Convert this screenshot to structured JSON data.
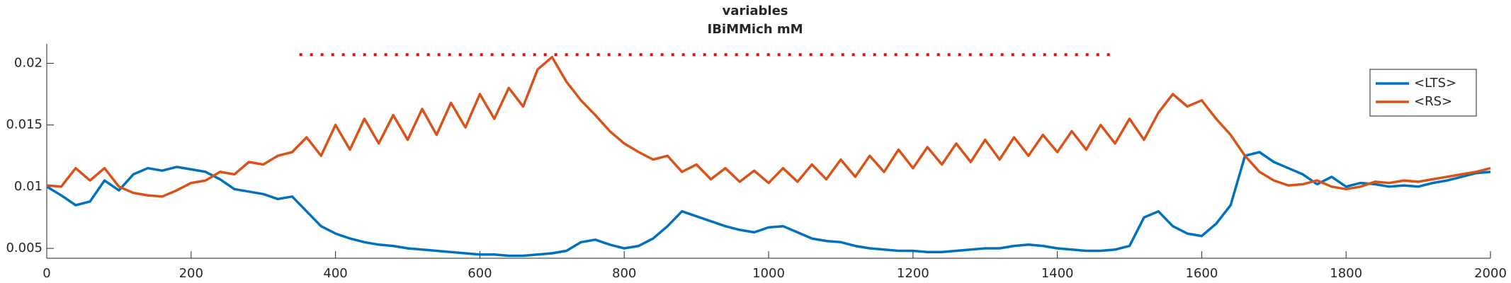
{
  "chart_data": {
    "type": "line",
    "title": "variables",
    "subtitle": "IBiMMich mM",
    "x": [
      0,
      20,
      40,
      60,
      80,
      100,
      120,
      140,
      160,
      180,
      200,
      220,
      240,
      260,
      280,
      300,
      320,
      340,
      360,
      380,
      400,
      420,
      440,
      460,
      480,
      500,
      520,
      540,
      560,
      580,
      600,
      620,
      640,
      660,
      680,
      700,
      720,
      740,
      760,
      780,
      800,
      820,
      840,
      860,
      880,
      900,
      920,
      940,
      960,
      980,
      1000,
      1020,
      1040,
      1060,
      1080,
      1100,
      1120,
      1140,
      1160,
      1180,
      1200,
      1220,
      1240,
      1260,
      1280,
      1300,
      1320,
      1340,
      1360,
      1380,
      1400,
      1420,
      1440,
      1460,
      1480,
      1500,
      1520,
      1540,
      1560,
      1580,
      1600,
      1620,
      1640,
      1660,
      1680,
      1700,
      1720,
      1740,
      1760,
      1780,
      1800,
      1820,
      1840,
      1860,
      1880,
      1900,
      1920,
      1940,
      1960,
      1980,
      2000
    ],
    "series": [
      {
        "name": "<LTS>",
        "color": "#0072bd",
        "values": [
          0.01,
          0.0093,
          0.0085,
          0.0088,
          0.0105,
          0.0097,
          0.011,
          0.0115,
          0.0113,
          0.0116,
          0.0114,
          0.0112,
          0.0106,
          0.0098,
          0.0096,
          0.0094,
          0.009,
          0.0092,
          0.008,
          0.0068,
          0.0062,
          0.0058,
          0.0055,
          0.0053,
          0.0052,
          0.005,
          0.0049,
          0.0048,
          0.0047,
          0.0046,
          0.0045,
          0.0045,
          0.0044,
          0.0044,
          0.0045,
          0.0046,
          0.0048,
          0.0055,
          0.0057,
          0.0053,
          0.005,
          0.0052,
          0.0058,
          0.0068,
          0.008,
          0.0076,
          0.0072,
          0.0068,
          0.0065,
          0.0063,
          0.0067,
          0.0068,
          0.0063,
          0.0058,
          0.0056,
          0.0055,
          0.0052,
          0.005,
          0.0049,
          0.0048,
          0.0048,
          0.0047,
          0.0047,
          0.0048,
          0.0049,
          0.005,
          0.005,
          0.0052,
          0.0053,
          0.0052,
          0.005,
          0.0049,
          0.0048,
          0.0048,
          0.0049,
          0.0052,
          0.0075,
          0.008,
          0.0068,
          0.0062,
          0.006,
          0.007,
          0.0085,
          0.0125,
          0.0128,
          0.012,
          0.0115,
          0.011,
          0.0102,
          0.0108,
          0.01,
          0.0103,
          0.0102,
          0.01,
          0.0101,
          0.01,
          0.0103,
          0.0105,
          0.0108,
          0.0111,
          0.0112
        ]
      },
      {
        "name": "<RS>",
        "color": "#d95319",
        "values": [
          0.0101,
          0.01,
          0.0115,
          0.0105,
          0.0115,
          0.01,
          0.0095,
          0.0093,
          0.0092,
          0.0097,
          0.0103,
          0.0105,
          0.0112,
          0.011,
          0.012,
          0.0118,
          0.0125,
          0.0128,
          0.014,
          0.0125,
          0.015,
          0.013,
          0.0155,
          0.0135,
          0.0158,
          0.0138,
          0.0163,
          0.0142,
          0.0168,
          0.0148,
          0.0175,
          0.0155,
          0.018,
          0.0165,
          0.0195,
          0.0205,
          0.0185,
          0.017,
          0.0158,
          0.0145,
          0.0135,
          0.0128,
          0.0122,
          0.0125,
          0.0112,
          0.0118,
          0.0106,
          0.0115,
          0.0104,
          0.0113,
          0.0103,
          0.0115,
          0.0104,
          0.0118,
          0.0106,
          0.0122,
          0.0108,
          0.0125,
          0.0112,
          0.013,
          0.0115,
          0.0132,
          0.0118,
          0.0135,
          0.012,
          0.0138,
          0.0122,
          0.014,
          0.0125,
          0.0142,
          0.0128,
          0.0145,
          0.013,
          0.015,
          0.0135,
          0.0155,
          0.0138,
          0.016,
          0.0175,
          0.0165,
          0.017,
          0.0155,
          0.0142,
          0.0125,
          0.0112,
          0.0105,
          0.0101,
          0.0102,
          0.0105,
          0.01,
          0.0098,
          0.01,
          0.0104,
          0.0103,
          0.0105,
          0.0104,
          0.0106,
          0.0108,
          0.011,
          0.0112,
          0.0115
        ]
      }
    ],
    "reference_line": {
      "x": [
        350,
        1480
      ],
      "y": 0.0207,
      "color": "#ff0000"
    },
    "xlim": [
      0,
      2000
    ],
    "xticks": [
      0,
      200,
      400,
      600,
      800,
      1000,
      1200,
      1400,
      1600,
      1800,
      2000
    ],
    "ylim": [
      0.0042,
      0.021
    ],
    "yticks": [
      0.005,
      0.01,
      0.015,
      0.02
    ],
    "legend": "northeast"
  }
}
